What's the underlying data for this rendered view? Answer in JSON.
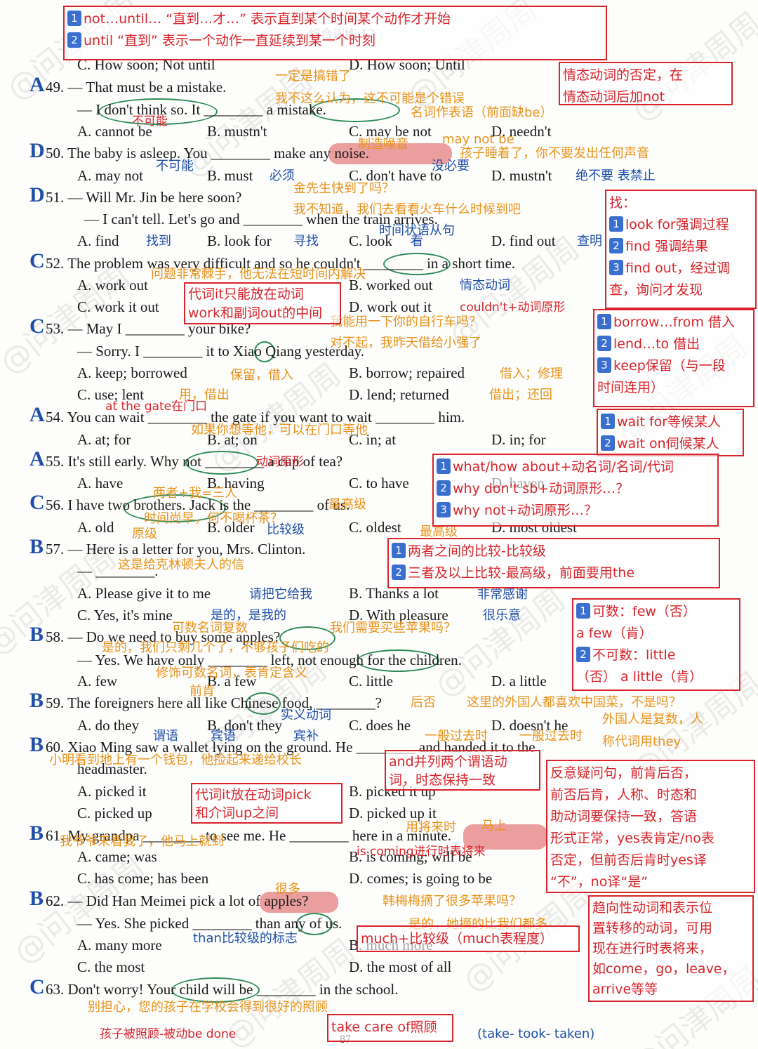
{
  "page_title": "综合训练 12",
  "page_number": "87",
  "watermark": "@问津周周",
  "answers": [
    [
      "A",
      "49"
    ],
    [
      "D",
      "50"
    ],
    [
      "D",
      "51"
    ],
    [
      "C",
      "52"
    ],
    [
      "C",
      "53"
    ],
    [
      "A",
      "54"
    ],
    [
      "A",
      "55"
    ],
    [
      "C",
      "56"
    ],
    [
      "B",
      "57"
    ],
    [
      "B",
      "58"
    ],
    [
      "B",
      "59"
    ],
    [
      "B",
      "60"
    ],
    [
      "B",
      "61"
    ],
    [
      "B",
      "62"
    ],
    [
      "C",
      "63"
    ]
  ],
  "lines": [
    "C. How soon; Not until",
    "D. How soon; Until",
    "49. — That must be a mistake.",
    "— I don't think so. It ________ a mistake.",
    "A. cannot be",
    "B. mustn't",
    "C. may be not",
    "D. needn't",
    "50. The baby is asleep. You ________ make any noise.",
    "A. may not",
    "B. must",
    "C. don't have to",
    "D. mustn't",
    "51. — Will Mr. Jin be here soon?",
    "— I can't tell. Let's go and ________ when the train arrives.",
    "A. find",
    "B. look for",
    "C. look",
    "D. find out",
    "52. The problem was very difficult and so he couldn't ________ in a short time.",
    "A. work out",
    "B. worked out",
    "C. work it out",
    "D. work out it",
    "53. — May I ________ your bike?",
    "— Sorry. I ________ it to Xiao Qiang yesterday.",
    "A. keep; borrowed",
    "B. borrow; repaired",
    "C. use; lent",
    "D. lend; returned",
    "54. You can wait ________ the gate if you want to wait ________ him.",
    "A. at; for",
    "B. at; on",
    "C. in; at",
    "D. in; for",
    "55. It's still early. Why not ________ a cup of tea?",
    "A. have",
    "B. having",
    "C. to have",
    "D. haven",
    "56. I have two brothers. Jack is the ________ of us.",
    "A. old",
    "B. older",
    "C. oldest",
    "D. most oldest",
    "57. — Here is a letter for you, Mrs. Clinton.",
    "— ________.",
    "A. Please give it to me",
    "B. Thanks a lot",
    "C. Yes, it's mine",
    "D. With pleasure",
    "58. — Do we need to buy some apples?",
    "— Yes. We have only ________ left, not enough for the children.",
    "A. few",
    "B. a few",
    "C. little",
    "D. a little",
    "59. The foreigners here all like Chinese food, ________?",
    "A. do they",
    "B. don't they",
    "C. does he",
    "D. doesn't he",
    "60. Xiao Ming saw a wallet lying on the ground. He ________ and handed it to the",
    "headmaster.",
    "A. picked it",
    "B. picked it up",
    "C. picked up",
    "D. picked up it",
    "61. My grandpa ________ to see me. He ________ here in a minute.",
    "A. came; was",
    "B. is coming; will be",
    "C. has come; has been",
    "D. comes; is going to be",
    "62. — Did Han Meimei pick a lot of apples?",
    "— Yes. She picked ________ than any of us.",
    "A. many more",
    "B. much more",
    "C. the most",
    "D. the most of all",
    "63. Don't worry! Your child will be ________ in the school."
  ],
  "notes_orange": [
    "一定是搞错了",
    "我不这么认为，这不可能是个错误",
    "名词作表语（前面缺be）",
    "制造噪音",
    "may not be",
    "孩子睡着了，你不要发出任何声音",
    "金先生快到了吗？",
    "我不知道，我们去看看火车什么时候到吧",
    "问题非常棘手，他无法在短时间内解决",
    "我能用一下你的自行车吗？",
    "对不起，我昨天借给小强了",
    "保留，借入",
    "借入；修理",
    "用，借出",
    "借出；还回",
    "如果你想等他，可以在门口等他",
    "两者+我=三人",
    "时间尚早，何不喝杯茶？",
    "最高级",
    "原级",
    "最高级",
    "这是给克林顿夫人的信",
    "可数名词复数",
    "我们需要买些苹果吗？",
    "是的，我们只剩几个了，不够孩子们吃的",
    "修饰可数名词，表肯定含义",
    "前肯",
    "后否",
    "这里的外国人都喜欢中国菜，不是吗？",
    "外国人是复数，人",
    "称代词用they",
    "一般过去时",
    "一般过去时",
    "小明看到地上有一个钱包，他捡起来递给校长",
    "用将来时",
    "马上",
    "我爷爷来看我了，他马上就到",
    "很多",
    "韩梅梅摘了很多苹果吗？",
    "是的，她摘的比我们都多",
    "别担心，您的孩子在学校会得到很好的照顾"
  ],
  "notes_blue": [
    "不可能",
    "必须",
    "没必要",
    "绝不要 表禁止",
    "时间状语从句",
    "找到",
    "寻找",
    "看",
    "查明",
    "情态动词",
    "比较级",
    "请把它给我",
    "非常感谢",
    "是的，是我的",
    "很乐意",
    "实义动词",
    "谓语",
    "宾语",
    "宾补",
    "than比较级的标志",
    "(take- took- taken)"
  ],
  "notes_red": [
    "不可能",
    "at the gate在门口",
    "couldn't+动词原形",
    "动词原形",
    "is coming进行时表将来",
    "孩子被照顾-被动be done"
  ],
  "boxes": [
    {
      "lines": [
        {
          "num": "1",
          "text": "not…until… “直到…才…” 表示直到某个时间某个动作才开始"
        },
        {
          "num": "2",
          "text": "until “直到” 表示一个动作一直延续到某一个时刻"
        }
      ]
    },
    {
      "lines": [
        {
          "text": "情态动词的否定，在"
        },
        {
          "text": "情态动词后加not"
        }
      ]
    },
    {
      "lines": [
        {
          "text": "找："
        },
        {
          "num": "1",
          "text": "look for强调过程"
        },
        {
          "num": "2",
          "text": "find 强调结果"
        },
        {
          "num": "3",
          "text": "find out，经过调"
        },
        {
          "text": "查，询问才发现"
        }
      ]
    },
    {
      "lines": [
        {
          "text": "代词it只能放在动词"
        },
        {
          "text": "work和副词out的中间"
        }
      ]
    },
    {
      "lines": [
        {
          "num": "1",
          "text": "borrow…from 借入"
        },
        {
          "num": "2",
          "text": "lend…to 借出"
        },
        {
          "num": "3",
          "text": "keep保留（与一段"
        },
        {
          "text": "时间连用）"
        }
      ]
    },
    {
      "lines": [
        {
          "num": "1",
          "text": "wait for等候某人"
        },
        {
          "num": "2",
          "text": "wait on伺候某人"
        }
      ]
    },
    {
      "lines": [
        {
          "num": "1",
          "text": "what/how about+动名词/名词/代词"
        },
        {
          "num": "2",
          "text": "why don't sb+动词原形…？"
        },
        {
          "num": "3",
          "text": "why not+动词原形…？"
        }
      ]
    },
    {
      "lines": [
        {
          "num": "1",
          "text": "两者之间的比较-比较级"
        },
        {
          "num": "2",
          "text": "三者及以上比较-最高级，前面要用the"
        }
      ]
    },
    {
      "lines": [
        {
          "num": "1",
          "text": "可数：few（否）"
        },
        {
          "text": "a few（肯）"
        },
        {
          "num": "2",
          "text": "不可数：little"
        },
        {
          "text": "（否） a little（肯）"
        }
      ]
    },
    {
      "lines": [
        {
          "text": "代词it放在动词pick"
        },
        {
          "text": "和介词up之间"
        }
      ]
    },
    {
      "lines": [
        {
          "text": "and并列两个谓语动"
        },
        {
          "text": "词，时态保持一致"
        }
      ]
    },
    {
      "lines": [
        {
          "text": "反意疑问句，前肯后否，"
        },
        {
          "text": "前否后肯，人称、时态和"
        },
        {
          "text": "助动词要保持一致，答语"
        },
        {
          "text": "形式正常，yes表肯定/no表"
        },
        {
          "text": "否定，但前否后肯时yes译"
        },
        {
          "text": "“不”，no译“是”"
        }
      ]
    },
    {
      "lines": [
        {
          "text": "趋向性动词和表示位"
        },
        {
          "text": "置转移的动词，可用"
        },
        {
          "text": "现在进行时表将来，"
        },
        {
          "text": "如come，go，leave，"
        },
        {
          "text": "arrive等等"
        }
      ]
    },
    {
      "lines": [
        {
          "text": "much+比较级（much表程度）"
        }
      ]
    },
    {
      "lines": [
        {
          "text": "take care of照顾"
        }
      ]
    }
  ]
}
